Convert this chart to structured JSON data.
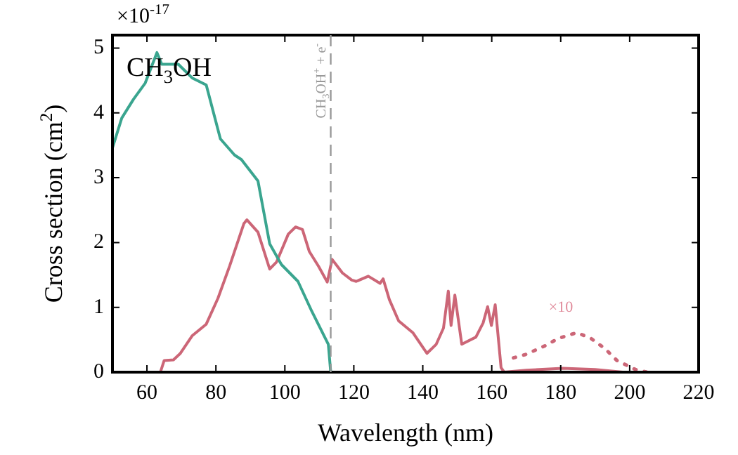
{
  "chart_data": {
    "type": "line",
    "xlabel": "Wavelength (nm)",
    "ylabel": "Cross section (cm$^{2}$)",
    "xlim": [
      50,
      220
    ],
    "xticks": [
      60,
      80,
      100,
      120,
      140,
      160,
      180,
      200,
      220
    ],
    "ylim": [
      0,
      5.2
    ],
    "yticks": [
      0,
      1,
      2,
      3,
      4,
      5
    ],
    "grid": false,
    "legend": false,
    "marker": "none",
    "annotations": [
      "CH$_{3}$OH",
      "×10$^{-17}$",
      "×10"
    ],
    "ref_lines": [
      {
        "axis": "x",
        "value": 113.3,
        "label": "CH$_{3}$OH$^{+}$ + e$^{-}$",
        "color": "#999999",
        "line_style": "dashed"
      }
    ],
    "series": [
      {
        "color": "#3aa58f",
        "line_style": "solid",
        "x": [
          50,
          52.7,
          56.1,
          59.5,
          62.9,
          64.3,
          66.3,
          69.1,
          73.1,
          77.2,
          81.3,
          85.4,
          87.4,
          92.2,
          95.6,
          99,
          103.8,
          107.8,
          112.6,
          113.3
        ],
        "values": [
          3.46,
          3.92,
          4.21,
          4.46,
          4.93,
          4.75,
          4.75,
          4.75,
          4.54,
          4.43,
          3.6,
          3.35,
          3.28,
          2.95,
          1.98,
          1.66,
          1.4,
          0.94,
          0.43,
          0
        ]
      },
      {
        "color": "#cc6677",
        "line_style": "solid",
        "x": [
          63.9,
          65,
          67.7,
          69.7,
          73.1,
          77.2,
          80.6,
          84,
          88.1,
          89,
          92.2,
          95.6,
          97.6,
          101,
          103.1,
          105.1,
          107.1,
          109.8,
          112.3,
          113.7,
          116.7,
          119.4,
          120.7,
          124.2,
          127.6,
          128.5,
          130.3,
          133,
          137.1,
          141.2,
          143.9,
          146,
          147.4,
          148.2,
          149.3,
          151.3,
          155.4,
          157.5,
          158.8,
          159.9,
          161,
          162.7,
          163.6,
          170,
          180.6,
          190,
          198
        ],
        "values": [
          0,
          0.18,
          0.19,
          0.29,
          0.56,
          0.74,
          1.14,
          1.64,
          2.29,
          2.35,
          2.16,
          1.59,
          1.7,
          2.13,
          2.24,
          2.2,
          1.86,
          1.63,
          1.39,
          1.74,
          1.53,
          1.42,
          1.4,
          1.48,
          1.37,
          1.44,
          1.12,
          0.79,
          0.61,
          0.29,
          0.43,
          0.68,
          1.25,
          0.72,
          1.19,
          0.43,
          0.54,
          0.76,
          1.01,
          0.72,
          1.04,
          0.07,
          0,
          0.03,
          0.06,
          0.04,
          0
        ]
      },
      {
        "color": "#cc6677",
        "line_style": "dotted",
        "x": [
          166.3,
          169.7,
          175.2,
          179.3,
          184.7,
          188.8,
          192.9,
          196.3,
          201.7,
          205
        ],
        "values": [
          0.22,
          0.27,
          0.4,
          0.52,
          0.61,
          0.52,
          0.36,
          0.18,
          0.04,
          0
        ]
      }
    ]
  }
}
